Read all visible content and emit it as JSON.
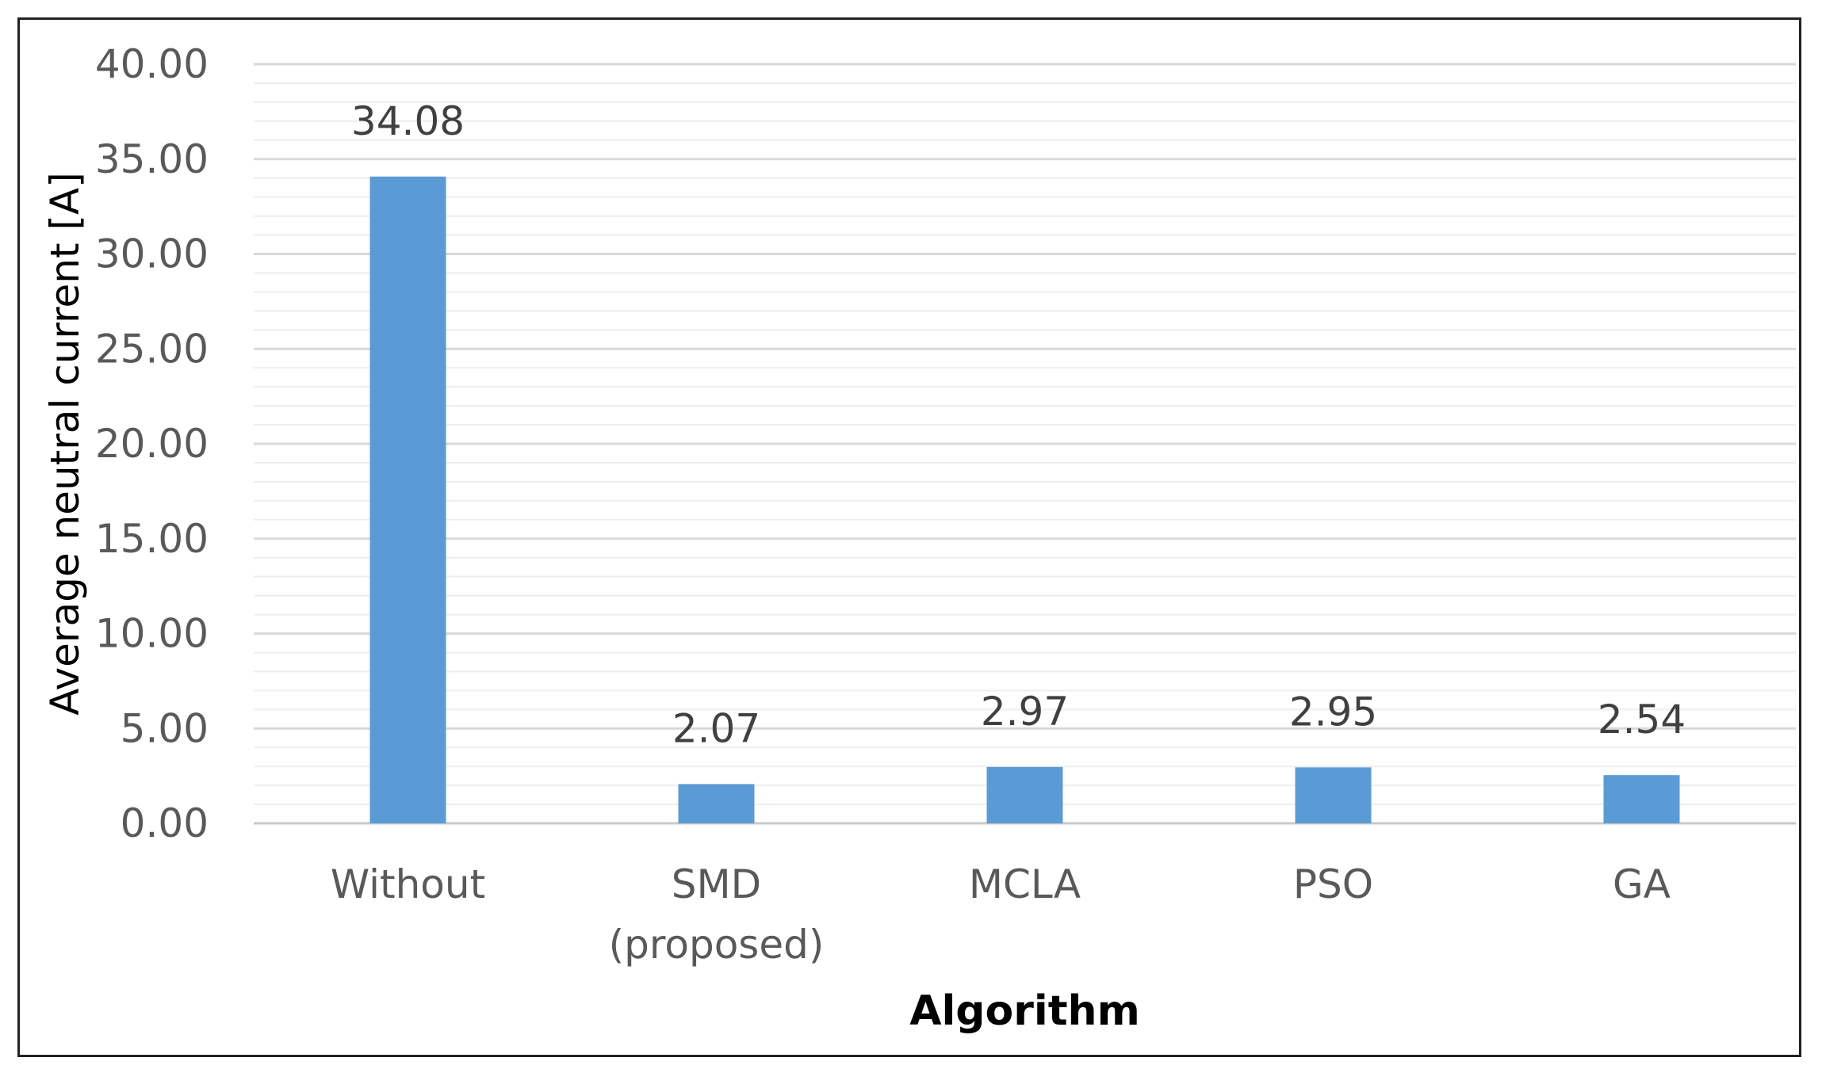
{
  "chart_data": {
    "type": "bar",
    "title": "",
    "xlabel": "Algorithm",
    "ylabel": "Average neutral current [A]",
    "categories": [
      [
        "Without"
      ],
      [
        "SMD",
        "(proposed)"
      ],
      [
        "MCLA"
      ],
      [
        "PSO"
      ],
      [
        "GA"
      ]
    ],
    "values": [
      34.08,
      2.07,
      2.97,
      2.95,
      2.54
    ],
    "data_labels": [
      "34.08",
      "2.07",
      "2.97",
      "2.95",
      "2.54"
    ],
    "ylim": [
      0,
      40
    ],
    "y_ticks": [
      "0.00",
      "5.00",
      "10.00",
      "15.00",
      "20.00",
      "25.00",
      "30.00",
      "35.00",
      "40.00"
    ],
    "y_tick_values": [
      0,
      5,
      10,
      15,
      20,
      25,
      30,
      35,
      40
    ],
    "minor_grid_step": 1,
    "grid": true,
    "legend": "none",
    "colors": {
      "bar": "#5B9BD5",
      "major_grid": "#D9D9D9",
      "minor_grid": "#EEEEEE",
      "frame": "#222222"
    }
  }
}
